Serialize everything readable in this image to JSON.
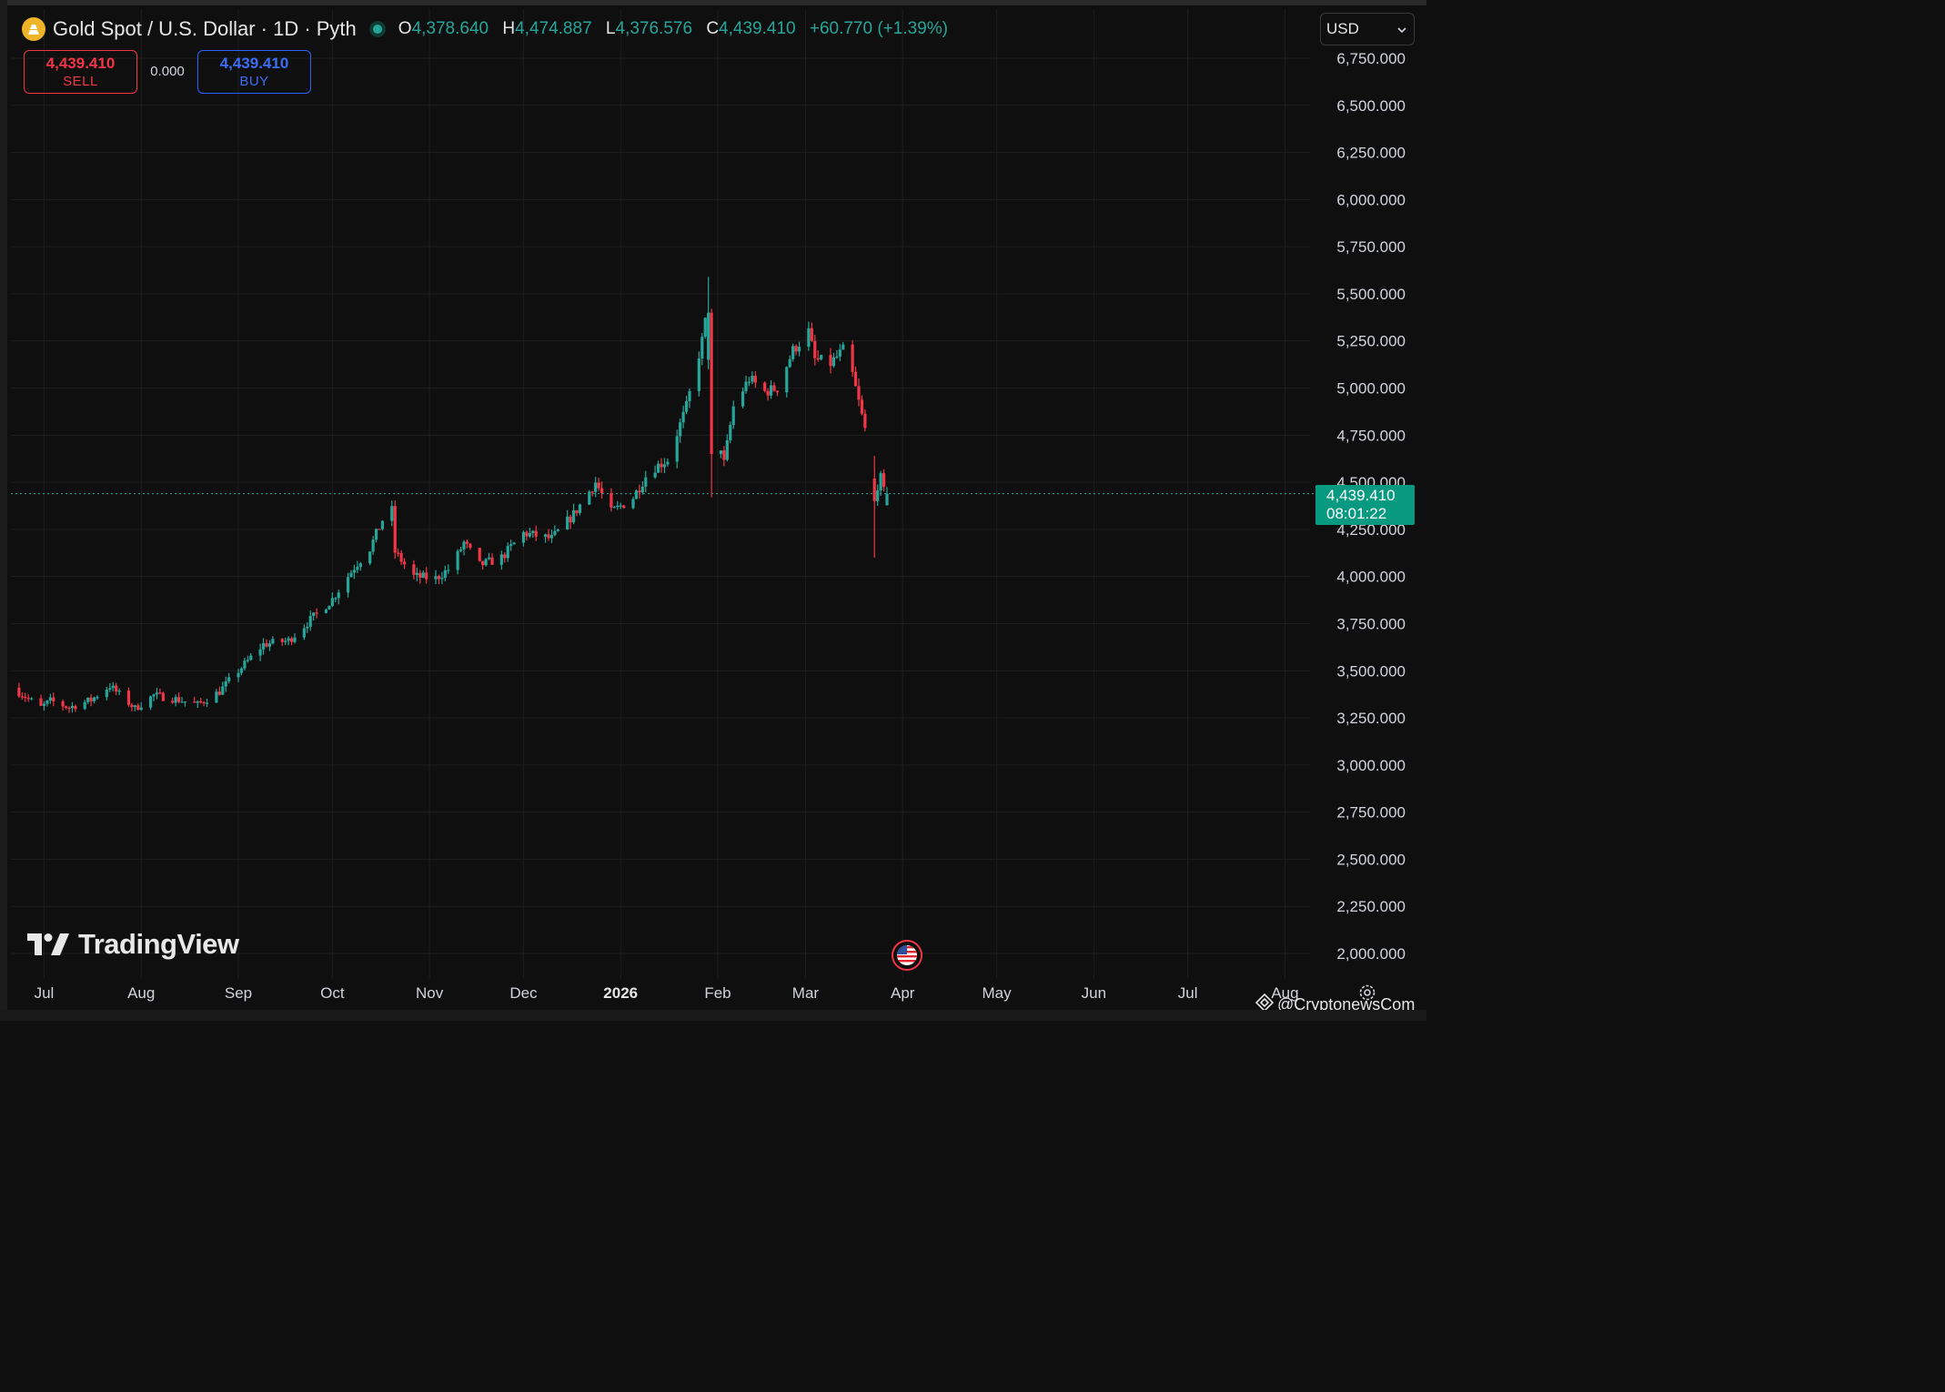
{
  "header": {
    "title": "Gold Spot / U.S. Dollar · 1D · Pyth",
    "open_key": "O",
    "open": "4,378.640",
    "high_key": "H",
    "high": "4,474.887",
    "low_key": "L",
    "low": "4,376.576",
    "close_key": "C",
    "close": "4,439.410",
    "change": "+60.770 (+1.39%)"
  },
  "currency": {
    "value": "USD"
  },
  "trade": {
    "sell_price": "4,439.410",
    "sell_label": "SELL",
    "spread": "0.000",
    "buy_price": "4,439.410",
    "buy_label": "BUY"
  },
  "last_price": {
    "value": "4,439.410",
    "countdown": "08:01:22"
  },
  "branding": {
    "logo": "TradingView",
    "watermark": "@CryptonewsCom"
  },
  "colors": {
    "up": "#26a69a",
    "down": "#f23645",
    "background": "#0f0f0f",
    "grid": "#1e1e1e",
    "last_line": "#26a69a"
  },
  "chart_data": {
    "type": "candlestick",
    "title": "Gold Spot / U.S. Dollar · 1D · Pyth",
    "ylim": [
      1875,
      6800
    ],
    "y_ticks": [
      2000,
      2250,
      2500,
      2750,
      3000,
      3250,
      3500,
      3750,
      4000,
      4250,
      4500,
      4750,
      5000,
      5250,
      5500,
      5750,
      6000,
      6250,
      6500,
      6750
    ],
    "y_tick_labels": [
      "2,000.000",
      "2,250.000",
      "2,500.000",
      "2,750.000",
      "3,000.000",
      "3,250.000",
      "3,500.000",
      "3,750.000",
      "4,000.000",
      "4,250.000",
      "4,500.000",
      "4,750.000",
      "5,000.000",
      "5,250.000",
      "5,500.000",
      "5,750.000",
      "6,000.000",
      "6,250.000",
      "6,500.000",
      "6,750.000"
    ],
    "x_range": [
      "2025-06-21",
      "2026-08-09"
    ],
    "x_ticks": [
      {
        "date": "2025-07-01",
        "label": "Jul",
        "bold": false
      },
      {
        "date": "2025-08-01",
        "label": "Aug",
        "bold": false
      },
      {
        "date": "2025-09-01",
        "label": "Sep",
        "bold": false
      },
      {
        "date": "2025-10-01",
        "label": "Oct",
        "bold": false
      },
      {
        "date": "2025-11-01",
        "label": "Nov",
        "bold": false
      },
      {
        "date": "2025-12-01",
        "label": "Dec",
        "bold": false
      },
      {
        "date": "2026-01-01",
        "label": "2026",
        "bold": true
      },
      {
        "date": "2026-02-01",
        "label": "Feb",
        "bold": false
      },
      {
        "date": "2026-03-01",
        "label": "Mar",
        "bold": false
      },
      {
        "date": "2026-04-01",
        "label": "Apr",
        "bold": false
      },
      {
        "date": "2026-05-01",
        "label": "May",
        "bold": false
      },
      {
        "date": "2026-06-01",
        "label": "Jun",
        "bold": false
      },
      {
        "date": "2026-07-01",
        "label": "Jul",
        "bold": false
      },
      {
        "date": "2026-08-01",
        "label": "Aug",
        "bold": false
      }
    ],
    "last_price": 4439.41,
    "trend": [
      [
        "2025-06-21",
        3410
      ],
      [
        "2025-06-30",
        3305
      ],
      [
        "2025-07-03",
        3340
      ],
      [
        "2025-07-09",
        3305
      ],
      [
        "2025-07-16",
        3345
      ],
      [
        "2025-07-22",
        3420
      ],
      [
        "2025-07-30",
        3300
      ],
      [
        "2025-08-05",
        3370
      ],
      [
        "2025-08-12",
        3350
      ],
      [
        "2025-08-19",
        3320
      ],
      [
        "2025-08-26",
        3390
      ],
      [
        "2025-09-01",
        3500
      ],
      [
        "2025-09-09",
        3640
      ],
      [
        "2025-09-17",
        3660
      ],
      [
        "2025-09-24",
        3770
      ],
      [
        "2025-10-01",
        3880
      ],
      [
        "2025-10-08",
        4050
      ],
      [
        "2025-10-13",
        4150
      ],
      [
        "2025-10-17",
        4300
      ],
      [
        "2025-10-20",
        4350
      ],
      [
        "2025-10-21",
        4130
      ],
      [
        "2025-10-27",
        4000
      ],
      [
        "2025-11-03",
        3990
      ],
      [
        "2025-11-08",
        4050
      ],
      [
        "2025-11-12",
        4180
      ],
      [
        "2025-11-17",
        4060
      ],
      [
        "2025-11-24",
        4100
      ],
      [
        "2025-12-01",
        4230
      ],
      [
        "2025-12-10",
        4200
      ],
      [
        "2025-12-17",
        4330
      ],
      [
        "2025-12-24",
        4500
      ],
      [
        "2025-12-29",
        4340
      ],
      [
        "2026-01-05",
        4420
      ],
      [
        "2026-01-10",
        4560
      ],
      [
        "2026-01-16",
        4620
      ],
      [
        "2026-01-22",
        4900
      ],
      [
        "2026-01-27",
        5250
      ],
      [
        "2026-01-29",
        5450
      ],
      [
        "2026-01-30",
        4950
      ],
      [
        "2026-02-03",
        4600
      ],
      [
        "2026-02-06",
        4900
      ],
      [
        "2026-02-11",
        5050
      ],
      [
        "2026-02-16",
        4980
      ],
      [
        "2026-02-20",
        5000
      ],
      [
        "2026-02-25",
        5200
      ],
      [
        "2026-03-02",
        5300
      ],
      [
        "2026-03-04",
        5150
      ],
      [
        "2026-03-09",
        5130
      ],
      [
        "2026-03-13",
        5200
      ],
      [
        "2026-03-16",
        5070
      ],
      [
        "2026-03-20",
        4780
      ],
      [
        "2026-03-23",
        4450
      ],
      [
        "2026-03-25",
        4520
      ],
      [
        "2026-03-27",
        4378.64
      ]
    ],
    "highlights": [
      {
        "date": "2026-01-29",
        "open": 5150,
        "high": 5590,
        "low": 5100,
        "close": 5400
      },
      {
        "date": "2026-01-30",
        "open": 5400,
        "high": 5420,
        "low": 4420,
        "close": 4650
      },
      {
        "date": "2026-03-23",
        "open": 4520,
        "high": 4640,
        "low": 4100,
        "close": 4400
      },
      {
        "date": "2026-03-27",
        "open": 4378.64,
        "high": 4474.887,
        "low": 4376.576,
        "close": 4439.41
      }
    ]
  }
}
